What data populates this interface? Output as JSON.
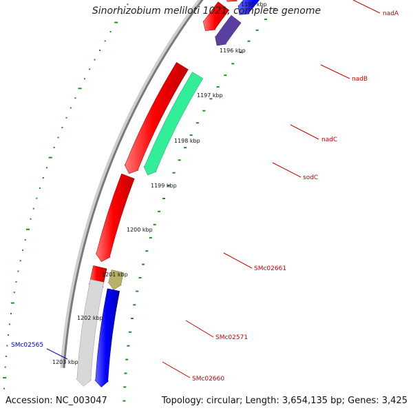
{
  "title": "Sinorhizobium meliloti 1021, complete genome",
  "footer": {
    "accession": "Accession: NC_003047",
    "summary": "Topology: circular; Length: 3,654,135 bp; Genes: 3,425"
  },
  "ticks": [
    "1195 kbp",
    "1196 kbp",
    "1197 kbp",
    "1198 kbp",
    "1199 kbp",
    "1200 kbp",
    "1201 kbp",
    "1202 kbp",
    "1203 kbp"
  ],
  "genes": [
    {
      "name": "nadA",
      "color": "#cc0000"
    },
    {
      "name": "nadB",
      "color": "#cc0000"
    },
    {
      "name": "nadC",
      "color": "#cc0000"
    },
    {
      "name": "sodC",
      "color": "#cc0000"
    },
    {
      "name": "SMc02661",
      "color": "#cc0000"
    },
    {
      "name": "SMc02571",
      "color": "#cc0000"
    },
    {
      "name": "SMc02660",
      "color": "#cc0000"
    },
    {
      "name": "SMc02565",
      "color": "#0000cc"
    }
  ],
  "colors": {
    "forward": "#ff0000",
    "reverse": "#0000ff",
    "sodc": "#5a3fa0",
    "smc02661": "#33ee99",
    "smc02660": "#b7b06a",
    "smc02565": "#d8d8d8",
    "backbone": "#888888",
    "dots": "#228b22"
  }
}
